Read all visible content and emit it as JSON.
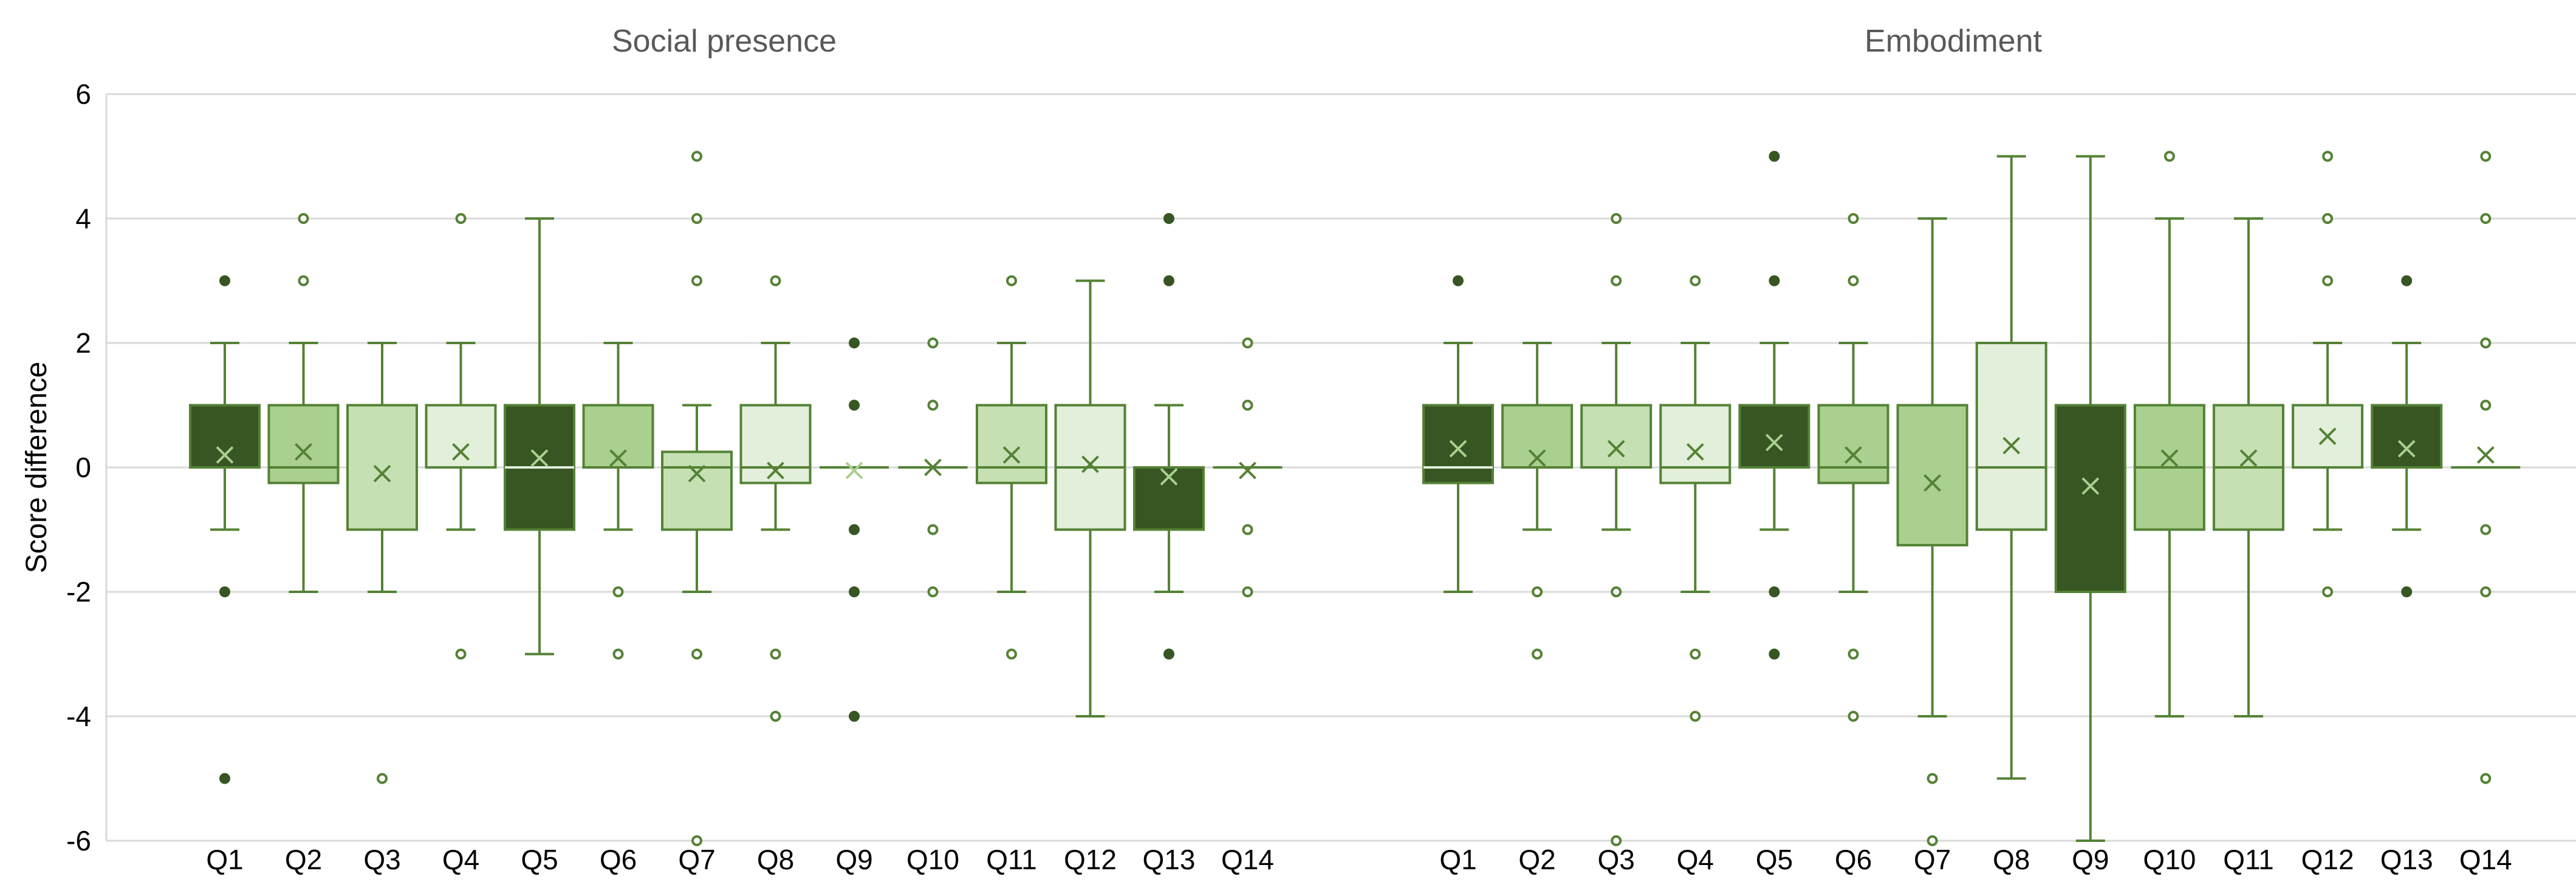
{
  "chart_data": {
    "type": "box",
    "ylabel": "Score difference",
    "ylim": [
      -6,
      6
    ],
    "yticks": [
      6,
      4,
      2,
      0,
      -2,
      -4,
      -6
    ],
    "grid": true,
    "legend": "none",
    "panels": [
      {
        "title": "Social presence",
        "categories": [
          "Q1",
          "Q2",
          "Q3",
          "Q4",
          "Q5",
          "Q6",
          "Q7",
          "Q8",
          "Q9",
          "Q10",
          "Q11",
          "Q12",
          "Q13",
          "Q14"
        ],
        "boxes": [
          {
            "q1": 0,
            "median": 1,
            "q3": 1,
            "whisker_low": -1,
            "whisker_high": 2,
            "mean": 0.2,
            "outliers": [
              3,
              -2,
              -5
            ],
            "fill": "#375623"
          },
          {
            "q1": -0.25,
            "median": 0,
            "q3": 1,
            "whisker_low": -2,
            "whisker_high": 2,
            "mean": 0.25,
            "outliers": [
              4,
              3
            ],
            "fill": "#a9d08e"
          },
          {
            "q1": -1,
            "median": 1,
            "q3": 1,
            "whisker_low": -2,
            "whisker_high": 2,
            "mean": -0.1,
            "outliers": [
              -5
            ],
            "fill": "#c6e0b4"
          },
          {
            "q1": 0,
            "median": 1,
            "q3": 1,
            "whisker_low": -1,
            "whisker_high": 2,
            "mean": 0.25,
            "outliers": [
              4,
              -3
            ],
            "fill": "#e2efda"
          },
          {
            "q1": -1,
            "median": 0,
            "q3": 1,
            "whisker_low": -3,
            "whisker_high": 4,
            "mean": 0.15,
            "outliers": [],
            "fill": "#375623"
          },
          {
            "q1": 0,
            "median": 1,
            "q3": 1,
            "whisker_low": -1,
            "whisker_high": 2,
            "mean": 0.15,
            "outliers": [
              -2,
              -3
            ],
            "fill": "#a9d08e"
          },
          {
            "q1": -1,
            "median": 0,
            "q3": 0.25,
            "whisker_low": -2,
            "whisker_high": 1,
            "mean": -0.1,
            "outliers": [
              5,
              4,
              3,
              -3,
              -6
            ],
            "fill": "#c6e0b4"
          },
          {
            "q1": -0.25,
            "median": 0,
            "q3": 1,
            "whisker_low": -1,
            "whisker_high": 2,
            "mean": -0.05,
            "outliers": [
              3,
              -3,
              -4
            ],
            "fill": "#e2efda"
          },
          {
            "q1": 0,
            "median": 0,
            "q3": 0,
            "whisker_low": 0,
            "whisker_high": 0,
            "mean": -0.05,
            "outliers": [
              2,
              1,
              -1,
              -2,
              -4
            ],
            "fill": "#375623"
          },
          {
            "q1": 0,
            "median": 0,
            "q3": 0,
            "whisker_low": 0,
            "whisker_high": 0,
            "mean": 0,
            "outliers": [
              2,
              1,
              -1,
              -2
            ],
            "fill": "#a9d08e"
          },
          {
            "q1": -0.25,
            "median": 0,
            "q3": 1,
            "whisker_low": -2,
            "whisker_high": 2,
            "mean": 0.2,
            "outliers": [
              3,
              -3
            ],
            "fill": "#c6e0b4"
          },
          {
            "q1": -1,
            "median": 0,
            "q3": 1,
            "whisker_low": -4,
            "whisker_high": 3,
            "mean": 0.05,
            "outliers": [],
            "fill": "#e2efda"
          },
          {
            "q1": -1,
            "median": 0,
            "q3": 0,
            "whisker_low": -2,
            "whisker_high": 1,
            "mean": -0.15,
            "outliers": [
              4,
              3,
              -3
            ],
            "fill": "#375623"
          },
          {
            "q1": 0,
            "median": 0,
            "q3": 0,
            "whisker_low": 0,
            "whisker_high": 0,
            "mean": -0.05,
            "outliers": [
              2,
              1,
              -1,
              -2
            ],
            "fill": "#a9d08e"
          }
        ]
      },
      {
        "title": "Embodiment",
        "categories": [
          "Q1",
          "Q2",
          "Q3",
          "Q4",
          "Q5",
          "Q6",
          "Q7",
          "Q8",
          "Q9",
          "Q10",
          "Q11",
          "Q12",
          "Q13",
          "Q14"
        ],
        "boxes": [
          {
            "q1": -0.25,
            "median": 0,
            "q3": 1,
            "whisker_low": -2,
            "whisker_high": 2,
            "mean": 0.3,
            "outliers": [
              3
            ],
            "fill": "#375623"
          },
          {
            "q1": 0,
            "median": 1,
            "q3": 1,
            "whisker_low": -1,
            "whisker_high": 2,
            "mean": 0.15,
            "outliers": [
              -2,
              -3
            ],
            "fill": "#a9d08e"
          },
          {
            "q1": 0,
            "median": 1,
            "q3": 1,
            "whisker_low": -1,
            "whisker_high": 2,
            "mean": 0.3,
            "outliers": [
              4,
              3,
              -2,
              -6
            ],
            "fill": "#c6e0b4"
          },
          {
            "q1": -0.25,
            "median": 0,
            "q3": 1,
            "whisker_low": -2,
            "whisker_high": 2,
            "mean": 0.25,
            "outliers": [
              3,
              -3,
              -4
            ],
            "fill": "#e2efda"
          },
          {
            "q1": 0,
            "median": 1,
            "q3": 1,
            "whisker_low": -1,
            "whisker_high": 2,
            "mean": 0.4,
            "outliers": [
              5,
              3,
              -2,
              -3
            ],
            "fill": "#375623"
          },
          {
            "q1": -0.25,
            "median": 0,
            "q3": 1,
            "whisker_low": -2,
            "whisker_high": 2,
            "mean": 0.2,
            "outliers": [
              4,
              3,
              -3,
              -4
            ],
            "fill": "#a9d08e"
          },
          {
            "q1": -1.25,
            "median": 1,
            "q3": 1,
            "whisker_low": -4,
            "whisker_high": 4,
            "mean": -0.25,
            "outliers": [
              -5,
              -6
            ],
            "fill": "#a9d08e"
          },
          {
            "q1": -1,
            "median": 0,
            "q3": 2,
            "whisker_low": -5,
            "whisker_high": 5,
            "mean": 0.35,
            "outliers": [],
            "fill": "#e2efda"
          },
          {
            "q1": -2,
            "median": 1,
            "q3": 1,
            "whisker_low": -6,
            "whisker_high": 5,
            "mean": -0.3,
            "outliers": [],
            "fill": "#375623"
          },
          {
            "q1": -1,
            "median": 0,
            "q3": 1,
            "whisker_low": -4,
            "whisker_high": 4,
            "mean": 0.15,
            "outliers": [
              5
            ],
            "fill": "#a9d08e"
          },
          {
            "q1": -1,
            "median": 0,
            "q3": 1,
            "whisker_low": -4,
            "whisker_high": 4,
            "mean": 0.15,
            "outliers": [],
            "fill": "#c6e0b4"
          },
          {
            "q1": 0,
            "median": 1,
            "q3": 1,
            "whisker_low": -1,
            "whisker_high": 2,
            "mean": 0.5,
            "outliers": [
              5,
              4,
              3,
              -2
            ],
            "fill": "#e2efda"
          },
          {
            "q1": 0,
            "median": 1,
            "q3": 1,
            "whisker_low": -1,
            "whisker_high": 2,
            "mean": 0.3,
            "outliers": [
              3,
              -2
            ],
            "fill": "#375623"
          },
          {
            "q1": 0,
            "median": 0,
            "q3": 0,
            "whisker_low": 0,
            "whisker_high": 0,
            "mean": 0.2,
            "outliers": [
              5,
              4,
              2,
              1,
              -1,
              -2,
              -5
            ],
            "fill": "#a9d08e"
          }
        ]
      }
    ],
    "colors": {
      "stroke": "#548235",
      "dark_outlier": "#375623",
      "grid": "#d9d9d9",
      "axis": "#d9d9d9"
    }
  }
}
